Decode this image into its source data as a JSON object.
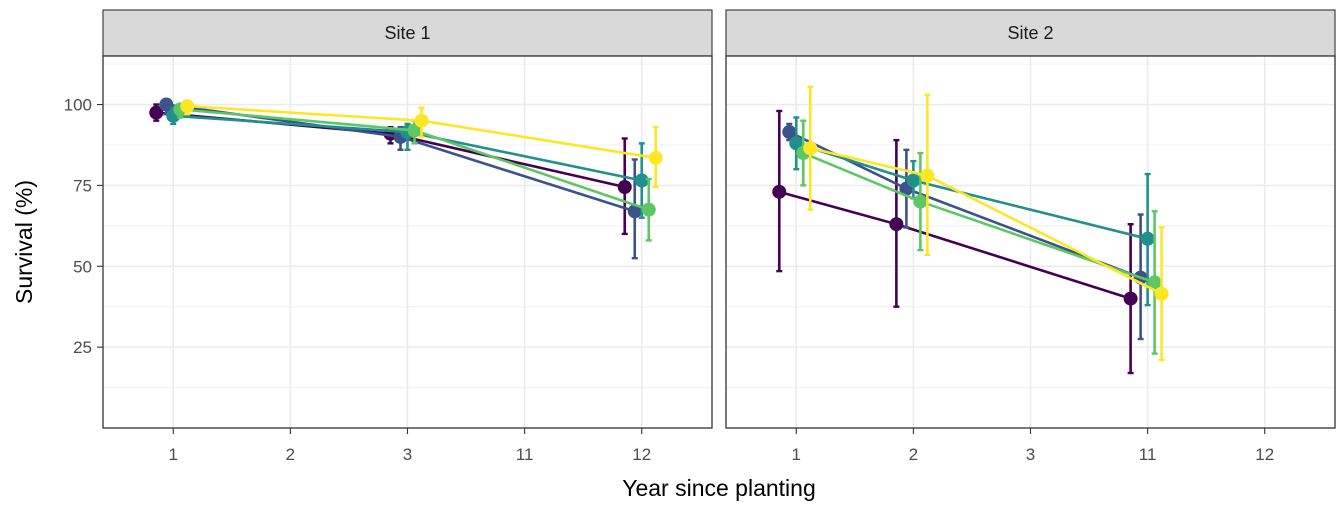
{
  "chart_data": {
    "type": "line",
    "xlabel": "Year since planting",
    "ylabel": "Survival (%)",
    "y_ticks": [
      25,
      50,
      75,
      100
    ],
    "ylim": [
      0,
      115
    ],
    "grid": true,
    "legend": "none",
    "series_colors": [
      "#440154",
      "#3b528b",
      "#21908c",
      "#5dc863",
      "#fde725"
    ],
    "panels": [
      {
        "title": "Site 1",
        "categories": [
          "1",
          "2",
          "3",
          "11",
          "12"
        ],
        "series": [
          {
            "points": [
              {
                "x": "1",
                "y": 97.5,
                "lo": 95,
                "hi": 100
              },
              {
                "x": "3",
                "y": 91,
                "lo": 88,
                "hi": 93
              },
              {
                "x": "12",
                "y": 74.5,
                "lo": 60,
                "hi": 89.5
              }
            ]
          },
          {
            "points": [
              {
                "x": "1",
                "y": 100,
                "lo": 97,
                "hi": 100
              },
              {
                "x": "3",
                "y": 90,
                "lo": 86,
                "hi": 93
              },
              {
                "x": "12",
                "y": 67,
                "lo": 52.5,
                "hi": 83
              }
            ]
          },
          {
            "points": [
              {
                "x": "1",
                "y": 96.5,
                "lo": 94,
                "hi": 99
              },
              {
                "x": "3",
                "y": 91.5,
                "lo": 86,
                "hi": 94
              },
              {
                "x": "12",
                "y": 76.5,
                "lo": 65,
                "hi": 88
              }
            ]
          },
          {
            "points": [
              {
                "x": "1",
                "y": 98.5,
                "lo": 96,
                "hi": 100
              },
              {
                "x": "3",
                "y": 92,
                "lo": 88,
                "hi": 95
              },
              {
                "x": "12",
                "y": 67.5,
                "lo": 58,
                "hi": 77
              }
            ]
          },
          {
            "points": [
              {
                "x": "1",
                "y": 99.5,
                "lo": 97,
                "hi": 100
              },
              {
                "x": "3",
                "y": 95,
                "lo": 90,
                "hi": 99
              },
              {
                "x": "12",
                "y": 83.5,
                "lo": 74.5,
                "hi": 93
              }
            ]
          }
        ]
      },
      {
        "title": "Site 2",
        "categories": [
          "1",
          "2",
          "3",
          "11",
          "12"
        ],
        "series": [
          {
            "points": [
              {
                "x": "1",
                "y": 73,
                "lo": 48.5,
                "hi": 98
              },
              {
                "x": "2",
                "y": 63,
                "lo": 37.5,
                "hi": 89
              },
              {
                "x": "11",
                "y": 40,
                "lo": 17,
                "hi": 63
              }
            ]
          },
          {
            "points": [
              {
                "x": "1",
                "y": 91.5,
                "lo": 89,
                "hi": 94
              },
              {
                "x": "2",
                "y": 74,
                "lo": 62,
                "hi": 86
              },
              {
                "x": "11",
                "y": 46.5,
                "lo": 27.5,
                "hi": 66
              }
            ]
          },
          {
            "points": [
              {
                "x": "1",
                "y": 88,
                "lo": 80,
                "hi": 96
              },
              {
                "x": "2",
                "y": 76.5,
                "lo": 71,
                "hi": 82.5
              },
              {
                "x": "11",
                "y": 58.5,
                "lo": 38,
                "hi": 78.5
              }
            ]
          },
          {
            "points": [
              {
                "x": "1",
                "y": 85,
                "lo": 75,
                "hi": 95
              },
              {
                "x": "2",
                "y": 70,
                "lo": 55,
                "hi": 85
              },
              {
                "x": "11",
                "y": 45,
                "lo": 23,
                "hi": 67
              }
            ]
          },
          {
            "points": [
              {
                "x": "1",
                "y": 86.5,
                "lo": 67.5,
                "hi": 105.5
              },
              {
                "x": "2",
                "y": 78,
                "lo": 53.5,
                "hi": 103
              },
              {
                "x": "11",
                "y": 41.5,
                "lo": 21,
                "hi": 62
              }
            ]
          }
        ]
      }
    ]
  }
}
